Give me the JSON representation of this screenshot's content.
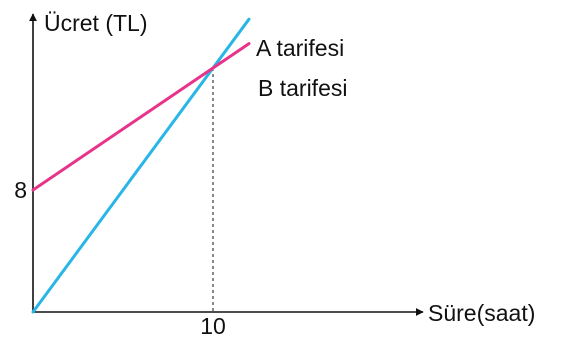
{
  "chart_data": {
    "type": "line",
    "title": "",
    "ylabel": "Ücret (TL)",
    "xlabel": "Süre(saat)",
    "x_ticks": [
      {
        "value": 10,
        "label": "10"
      }
    ],
    "y_ticks": [
      {
        "value": 8,
        "label": "8"
      }
    ],
    "grid": false,
    "annotations": [
      {
        "type": "dashed-vertical",
        "x": 10,
        "note": "intersection"
      }
    ],
    "series": [
      {
        "name": "A tarifesi",
        "color": "#29b6e6",
        "points": [
          [
            0,
            0
          ],
          [
            12,
            19.2
          ]
        ]
      },
      {
        "name": "B tarifesi",
        "color": "#e8338a",
        "points": [
          [
            0,
            8
          ],
          [
            12,
            17.6
          ]
        ]
      }
    ]
  }
}
